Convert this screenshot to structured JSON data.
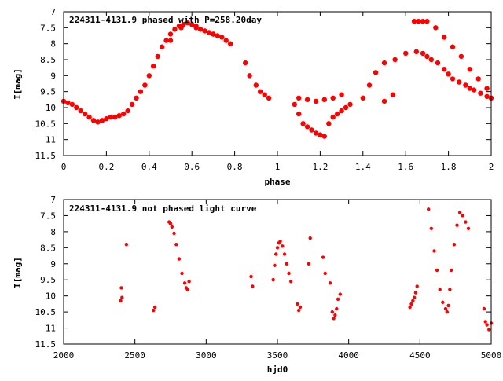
{
  "chart_data": [
    {
      "type": "scatter",
      "title": "224311-4131.9 phased with P=258.20day",
      "xlabel": "phase",
      "ylabel": "I[mag]",
      "xlim": [
        0,
        2
      ],
      "ylim": [
        11.5,
        7
      ],
      "y_inverted": true,
      "x_ticks": [
        "0",
        "0.2",
        "0.4",
        "0.6",
        "0.8",
        "1",
        "1.2",
        "1.4",
        "1.6",
        "1.8",
        "2"
      ],
      "y_ticks": [
        "7",
        "7.5",
        "8",
        "8.5",
        "9",
        "9.5",
        "10",
        "10.5",
        "11",
        "11.5"
      ],
      "marker_color": "#ff0000",
      "grid": false,
      "series": [
        {
          "x": [
            0.0,
            0.02,
            0.04,
            0.06,
            0.08,
            0.1,
            0.12,
            0.14,
            0.16,
            0.18,
            0.2,
            0.22,
            0.24,
            0.26,
            0.28,
            0.3,
            0.32,
            0.34,
            0.36,
            0.38,
            0.4,
            0.42,
            0.44,
            0.46,
            0.48,
            0.5,
            0.52,
            0.54,
            0.56,
            0.58,
            0.6,
            0.62,
            0.64,
            0.66,
            0.68,
            0.7,
            0.72,
            0.74,
            0.76,
            0.78,
            0.85,
            0.87,
            0.9,
            0.92,
            0.94,
            0.96,
            1.08,
            1.1,
            1.12,
            1.14,
            1.16,
            1.18,
            1.2,
            1.22,
            1.24,
            1.26,
            1.28,
            1.3,
            1.32,
            1.34,
            1.4,
            1.43,
            1.46,
            1.5,
            1.55,
            1.6,
            1.65,
            1.68,
            1.7,
            1.72,
            1.75,
            1.78,
            1.8,
            1.82,
            1.85,
            1.88,
            1.9,
            1.92,
            1.95,
            1.98,
            2.0
          ],
          "y": [
            9.8,
            9.85,
            9.9,
            10.0,
            10.1,
            10.2,
            10.3,
            10.4,
            10.45,
            10.4,
            10.35,
            10.3,
            10.3,
            10.25,
            10.2,
            10.1,
            9.9,
            9.7,
            9.5,
            9.3,
            9.0,
            8.7,
            8.4,
            8.1,
            7.9,
            7.7,
            7.55,
            7.45,
            7.4,
            7.35,
            7.4,
            7.45,
            7.55,
            7.6,
            7.65,
            7.7,
            7.75,
            7.8,
            7.9,
            8.0,
            8.6,
            9.0,
            9.3,
            9.5,
            9.6,
            9.7,
            9.9,
            10.2,
            10.5,
            10.6,
            10.7,
            10.8,
            10.85,
            10.9,
            10.5,
            10.3,
            10.2,
            10.1,
            10.0,
            9.9,
            9.7,
            9.3,
            8.9,
            8.6,
            8.5,
            8.3,
            8.25,
            8.3,
            8.4,
            8.5,
            8.6,
            8.8,
            8.95,
            9.1,
            9.2,
            9.3,
            9.4,
            9.45,
            9.55,
            9.65,
            9.7
          ]
        },
        {
          "x": [
            1.64,
            1.66,
            1.68,
            1.7,
            1.74,
            1.78,
            1.82,
            1.86,
            1.9,
            1.94,
            1.98,
            1.1,
            1.14,
            1.18,
            1.22,
            1.26,
            1.3,
            1.5,
            1.54,
            0.5,
            0.55,
            0.62,
            0.66,
            0.7
          ],
          "y": [
            7.3,
            7.3,
            7.3,
            7.3,
            7.5,
            7.8,
            8.1,
            8.4,
            8.8,
            9.1,
            9.4,
            9.7,
            9.75,
            9.8,
            9.75,
            9.7,
            9.6,
            9.8,
            9.6,
            7.9,
            7.5,
            7.5,
            7.6,
            7.7
          ]
        }
      ]
    },
    {
      "type": "scatter",
      "title": "224311-4131.9 not phased light curve",
      "xlabel": "hjd0",
      "ylabel": "I[mag]",
      "xlim": [
        2000,
        5000
      ],
      "ylim": [
        11.5,
        7
      ],
      "y_inverted": true,
      "x_ticks": [
        "2000",
        "2500",
        "3000",
        "3500",
        "4000",
        "4500",
        "5000"
      ],
      "y_ticks": [
        "7",
        "7.5",
        "8",
        "8.5",
        "9",
        "9.5",
        "10",
        "10.5",
        "11",
        "11.5"
      ],
      "marker_color": "#ff0000",
      "grid": false,
      "series": [
        {
          "x": [
            2400,
            2405,
            2410,
            2440,
            2630,
            2640,
            2740,
            2750,
            2760,
            2775,
            2790,
            2810,
            2830,
            2850,
            2860,
            2870,
            2880,
            3315,
            3325,
            3470,
            3480,
            3490,
            3500,
            3510,
            3520,
            3535,
            3550,
            3565,
            3580,
            3595,
            3640,
            3650,
            3660,
            3720,
            3730,
            3820,
            3835,
            3870,
            3885,
            3895,
            3905,
            3915,
            3925,
            3940,
            4430,
            4440,
            4450,
            4460,
            4470,
            4480,
            4560,
            4580,
            4600,
            4620,
            4640,
            4660,
            4680,
            4690,
            4700,
            4710,
            4720,
            4740,
            4760,
            4780,
            4800,
            4820,
            4840,
            4950,
            4960,
            4970,
            4985,
            5000
          ],
          "y": [
            10.15,
            9.75,
            10.05,
            8.4,
            10.45,
            10.35,
            7.7,
            7.75,
            7.85,
            8.05,
            8.4,
            8.85,
            9.3,
            9.6,
            9.75,
            9.8,
            9.55,
            9.4,
            9.7,
            9.5,
            9.05,
            8.7,
            8.5,
            8.35,
            8.3,
            8.45,
            8.7,
            9.0,
            9.3,
            9.55,
            10.25,
            10.45,
            10.35,
            9.0,
            8.2,
            8.8,
            9.3,
            9.6,
            10.5,
            10.7,
            10.6,
            10.4,
            10.1,
            9.95,
            10.35,
            10.25,
            10.15,
            10.05,
            9.9,
            9.7,
            7.3,
            7.9,
            8.6,
            9.2,
            9.8,
            10.2,
            10.4,
            10.5,
            10.3,
            9.8,
            9.2,
            8.4,
            7.8,
            7.4,
            7.5,
            7.7,
            7.9,
            10.4,
            10.8,
            10.9,
            11.05,
            10.85
          ]
        }
      ]
    }
  ]
}
